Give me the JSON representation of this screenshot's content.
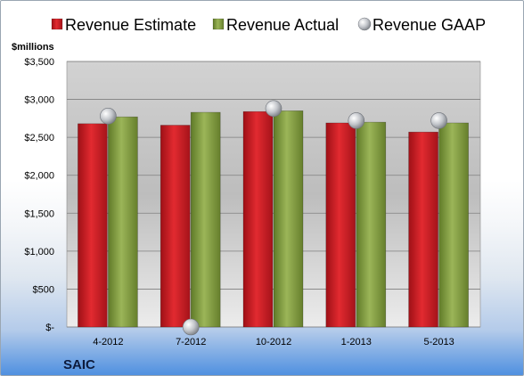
{
  "chart_data": {
    "type": "bar",
    "company": "SAIC",
    "unit_label": "$millions",
    "categories": [
      "4-2012",
      "7-2012",
      "10-2012",
      "1-2013",
      "5-2013"
    ],
    "series": [
      {
        "name": "Revenue Estimate",
        "kind": "bar",
        "color": "#cc1a22",
        "values": [
          2680,
          2660,
          2840,
          2690,
          2570
        ]
      },
      {
        "name": "Revenue Actual",
        "kind": "bar",
        "color": "#7f9a3a",
        "values": [
          2770,
          2830,
          2850,
          2700,
          2690
        ]
      },
      {
        "name": "Revenue GAAP",
        "kind": "marker",
        "color": "#b8bcc2",
        "values": [
          2780,
          0,
          2880,
          2720,
          2720
        ]
      }
    ],
    "y_ticks": [
      {
        "value": 0,
        "label": "$-"
      },
      {
        "value": 500,
        "label": "$500"
      },
      {
        "value": 1000,
        "label": "$1,000"
      },
      {
        "value": 1500,
        "label": "$1,500"
      },
      {
        "value": 2000,
        "label": "$2,000"
      },
      {
        "value": 2500,
        "label": "$2,500"
      },
      {
        "value": 3000,
        "label": "$3,000"
      },
      {
        "value": 3500,
        "label": "$3,500"
      }
    ],
    "ylim": [
      0,
      3500
    ],
    "grid": true,
    "legend_position": "top"
  }
}
